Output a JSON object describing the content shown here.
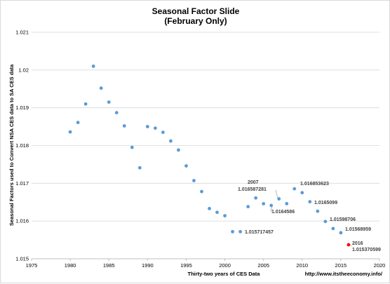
{
  "chart_data": {
    "type": "scatter",
    "title": "Seasonal Factor Slide",
    "subtitle": "(February Only)",
    "xlabel": "Thirty-two years of CES Data",
    "ylabel": "Seasonal Factors used to Convert NSA CES data to SA CES data",
    "xlim": [
      1975,
      2020
    ],
    "ylim": [
      1.015,
      1.021
    ],
    "xticks": [
      1975,
      1980,
      1985,
      1990,
      1995,
      2000,
      2005,
      2010,
      2015,
      2020
    ],
    "yticks": [
      "1.015",
      "1.016",
      "1.017",
      "1.018",
      "1.019",
      "1.02",
      "1.021"
    ],
    "grid": "horizontal",
    "series": [
      {
        "color": "#5B9BD5",
        "points": [
          {
            "x": 1980,
            "y": 1.01836
          },
          {
            "x": 1981,
            "y": 1.01861
          },
          {
            "x": 1982,
            "y": 1.0191
          },
          {
            "x": 1983,
            "y": 1.0201
          },
          {
            "x": 1984,
            "y": 1.01952
          },
          {
            "x": 1985,
            "y": 1.01915
          },
          {
            "x": 1986,
            "y": 1.01887
          },
          {
            "x": 1987,
            "y": 1.01852
          },
          {
            "x": 1988,
            "y": 1.01795
          },
          {
            "x": 1989,
            "y": 1.01741
          },
          {
            "x": 1990,
            "y": 1.0185
          },
          {
            "x": 1991,
            "y": 1.01846
          },
          {
            "x": 1992,
            "y": 1.01835
          },
          {
            "x": 1993,
            "y": 1.01812
          },
          {
            "x": 1994,
            "y": 1.01788
          },
          {
            "x": 1995,
            "y": 1.01746
          },
          {
            "x": 1996,
            "y": 1.01707
          },
          {
            "x": 1997,
            "y": 1.01678
          },
          {
            "x": 1998,
            "y": 1.01633
          },
          {
            "x": 1999,
            "y": 1.01623
          },
          {
            "x": 2000,
            "y": 1.01614
          },
          {
            "x": 2001,
            "y": 1.015717457
          },
          {
            "x": 2002,
            "y": 1.015717457
          },
          {
            "x": 2003,
            "y": 1.01638
          },
          {
            "x": 2004,
            "y": 1.01661
          },
          {
            "x": 2005,
            "y": 1.016458
          },
          {
            "x": 2006,
            "y": 1.016412
          },
          {
            "x": 2007,
            "y": 1.016587281
          },
          {
            "x": 2008,
            "y": 1.01646
          },
          {
            "x": 2009,
            "y": 1.016853623
          },
          {
            "x": 2010,
            "y": 1.01675
          },
          {
            "x": 2011,
            "y": 1.01651
          },
          {
            "x": 2012,
            "y": 1.01626
          },
          {
            "x": 2013,
            "y": 1.01598706
          },
          {
            "x": 2014,
            "y": 1.0158
          },
          {
            "x": 2015,
            "y": 1.01568959
          }
        ]
      },
      {
        "color": "#FF0000",
        "points": [
          {
            "x": 2016,
            "y": 1.015370599
          }
        ]
      }
    ],
    "annotations": {
      "a2007": "2007",
      "a2007_value": "1.016587281",
      "a2006_value": "1.0164586",
      "a2001_value": "1.015717457",
      "a2009_value": "1.016853623",
      "a2011_value": "1.0165099",
      "a2013_value": "1.01598706",
      "a2015_value": "1.01568959",
      "a2016": "2016",
      "a2016_value": "1.015370599"
    },
    "source": "http://www.itstheeconomy.info/"
  }
}
